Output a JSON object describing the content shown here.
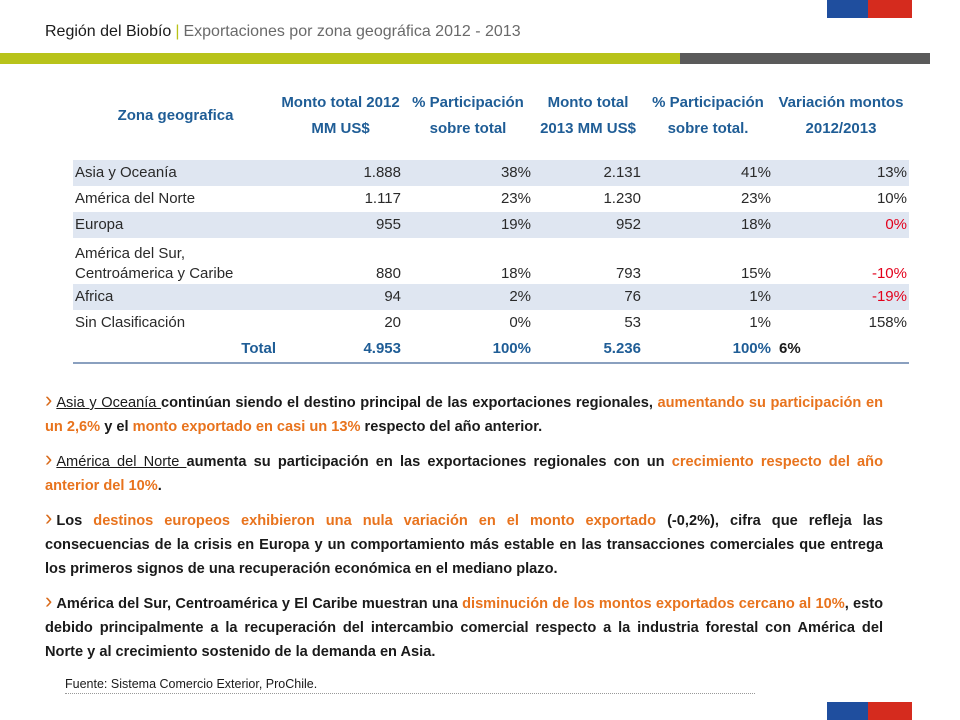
{
  "header": {
    "region": "Región del Biobío",
    "separator": "|",
    "subtitle": "Exportaciones por zona geográfica 2012 - 2013"
  },
  "colors": {
    "accent_green": "#b8c31a",
    "header_blue": "#1f5d96",
    "negative_red": "#e3001b",
    "highlight_orange": "#e8731d",
    "flag_blue": "#1f4e9e",
    "flag_red": "#d52b1e"
  },
  "table": {
    "headers": [
      "Zona geografica",
      "Monto total 2012 MM US$",
      "% Participación sobre total",
      "Monto total 2013 MM US$",
      "% Participación sobre total.",
      "Variación montos 2012/2013"
    ],
    "rows": [
      [
        "Asia y Oceanía",
        "1.888",
        "38%",
        "2.131",
        "41%",
        "13%"
      ],
      [
        "América del Norte",
        "1.117",
        "23%",
        "1.230",
        "23%",
        "10%"
      ],
      [
        "Europa",
        "955",
        "19%",
        "952",
        "18%",
        "0%"
      ],
      [
        "América del Sur, Centroámerica  y Caribe",
        "880",
        "18%",
        "793",
        "15%",
        "-10%"
      ],
      [
        "Africa",
        "94",
        "2%",
        "76",
        "1%",
        "-19%"
      ],
      [
        "Sin Clasificación",
        "20",
        "0%",
        "53",
        "1%",
        "158%"
      ]
    ],
    "total": [
      "Total",
      "4.953",
      "100%",
      "5.236",
      "100%",
      "6%"
    ]
  },
  "bullets": {
    "b1": {
      "subject": "Asia y Oceanía ",
      "t1": "continúan siendo el destino principal de las exportaciones regionales, ",
      "h1": "aumentando su participación en un 2,6%",
      "t2": " y el ",
      "h2": "monto exportado en casi un 13%",
      "t3": " respecto del año anterior."
    },
    "b2": {
      "subject": "América del Norte ",
      "t1": "aumenta su participación en las exportaciones regionales con un ",
      "h1": "crecimiento respecto del año anterior del 10%",
      "t2": "."
    },
    "b3": {
      "t1": "Los ",
      "h1": "destinos europeos exhibieron una nula variación en el monto exportado",
      "t2": " (-0,2%),  cifra que refleja las consecuencias de la crisis en Europa y un comportamiento más estable en las transacciones comerciales que entrega los primeros signos de una recuperación económica en el mediano plazo."
    },
    "b4": {
      "t1": "América del Sur, Centroamérica y El Caribe muestran una ",
      "h1": "disminución de los montos exportados cercano al 10%",
      "t2": ", esto debido principalmente a la recuperación del intercambio comercial respecto a la industria forestal con América del Norte y al crecimiento sostenido de la demanda en Asia."
    }
  },
  "source": "Fuente: Sistema Comercio Exterior, ProChile."
}
